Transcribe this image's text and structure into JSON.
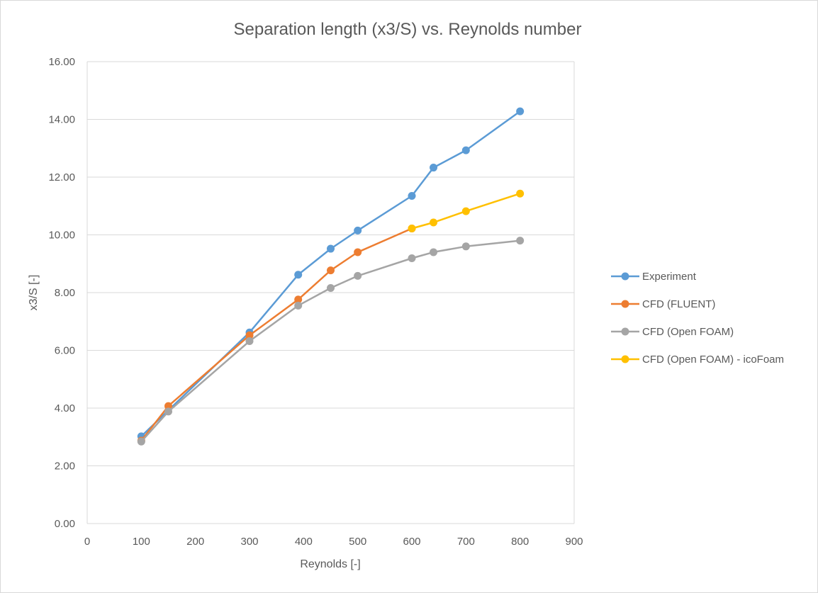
{
  "chart_data": {
    "type": "line",
    "title": "Separation length (x3/S) vs. Reynolds number",
    "xlabel": "Reynolds [-]",
    "ylabel": "x3/S [-]",
    "xlim": [
      0,
      900
    ],
    "ylim": [
      0,
      16
    ],
    "x_ticks": [
      0,
      100,
      200,
      300,
      400,
      500,
      600,
      700,
      800,
      900
    ],
    "x_tick_labels": [
      "0",
      "100",
      "200",
      "300",
      "400",
      "500",
      "600",
      "700",
      "800",
      "900"
    ],
    "y_ticks": [
      0,
      2,
      4,
      6,
      8,
      10,
      12,
      14,
      16
    ],
    "y_tick_labels": [
      "0.00",
      "2.00",
      "4.00",
      "6.00",
      "8.00",
      "10.00",
      "12.00",
      "14.00",
      "16.00"
    ],
    "grid": "horizontal",
    "legend_position": "right",
    "series": [
      {
        "name": "Experiment",
        "color": "#5b9bd5",
        "points": [
          [
            100,
            3.02
          ],
          [
            300,
            6.62
          ],
          [
            390,
            8.62
          ],
          [
            450,
            9.52
          ],
          [
            500,
            10.15
          ],
          [
            600,
            11.35
          ],
          [
            640,
            12.33
          ],
          [
            700,
            12.93
          ],
          [
            800,
            14.28
          ]
        ]
      },
      {
        "name": "CFD (FLUENT)",
        "color": "#ed7d31",
        "points": [
          [
            100,
            2.87
          ],
          [
            150,
            4.07
          ],
          [
            300,
            6.52
          ],
          [
            390,
            7.76
          ],
          [
            450,
            8.77
          ],
          [
            500,
            9.4
          ],
          [
            600,
            10.22
          ]
        ]
      },
      {
        "name": "CFD (Open FOAM)",
        "color": "#a5a5a5",
        "points": [
          [
            100,
            2.84
          ],
          [
            150,
            3.88
          ],
          [
            300,
            6.32
          ],
          [
            390,
            7.55
          ],
          [
            450,
            8.16
          ],
          [
            500,
            8.58
          ],
          [
            600,
            9.19
          ],
          [
            640,
            9.4
          ],
          [
            700,
            9.6
          ],
          [
            800,
            9.8
          ]
        ]
      },
      {
        "name": "CFD (Open FOAM) - icoFoam",
        "color": "#ffc000",
        "points": [
          [
            600,
            10.22
          ],
          [
            640,
            10.43
          ],
          [
            700,
            10.82
          ],
          [
            800,
            11.43
          ]
        ]
      }
    ]
  }
}
